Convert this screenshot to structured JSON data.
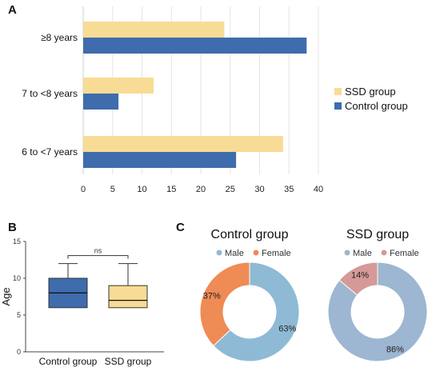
{
  "panels": {
    "a": "A",
    "b": "B",
    "c": "C"
  },
  "chart_data": [
    {
      "type": "bar",
      "orientation": "horizontal",
      "categories": [
        "≥8 years",
        "7 to <8 years",
        "6 to <7 years"
      ],
      "series": [
        {
          "name": "SSD group",
          "color": "#f8dc95",
          "values": [
            24,
            12,
            34
          ]
        },
        {
          "name": "Control group",
          "color": "#3f6cad",
          "values": [
            38,
            6,
            26
          ]
        }
      ],
      "xlim": [
        0,
        40
      ],
      "xticks": [
        0,
        5,
        10,
        15,
        20,
        25,
        30,
        35,
        40
      ],
      "grid": "vertical",
      "legend": "right"
    },
    {
      "type": "box",
      "ylabel": "Age",
      "categories": [
        "Control group",
        "SSD group"
      ],
      "ylim": [
        0,
        15
      ],
      "yticks": [
        0,
        5,
        10,
        15
      ],
      "boxes": [
        {
          "name": "Control group",
          "color": "#3f6cad",
          "min": 6,
          "q1": 6,
          "median": 8,
          "q3": 10,
          "max": 12
        },
        {
          "name": "SSD group",
          "color": "#f8dc95",
          "min": 6,
          "q1": 6,
          "median": 7,
          "q3": 9,
          "max": 12
        }
      ],
      "annotation": "ns"
    },
    {
      "type": "pie",
      "variant": "donut",
      "title": "Control group",
      "legend": "top",
      "slices": [
        {
          "label": "Male",
          "value": 63,
          "text": "63%",
          "color": "#8ebad6"
        },
        {
          "label": "Female",
          "value": 37,
          "text": "37%",
          "color": "#ef8b55"
        }
      ]
    },
    {
      "type": "pie",
      "variant": "donut",
      "title": "SSD group",
      "legend": "top",
      "slices": [
        {
          "label": "Male",
          "value": 86,
          "text": "86%",
          "color": "#9db6d1"
        },
        {
          "label": "Female",
          "value": 14,
          "text": "14%",
          "color": "#d59a98"
        }
      ]
    }
  ]
}
